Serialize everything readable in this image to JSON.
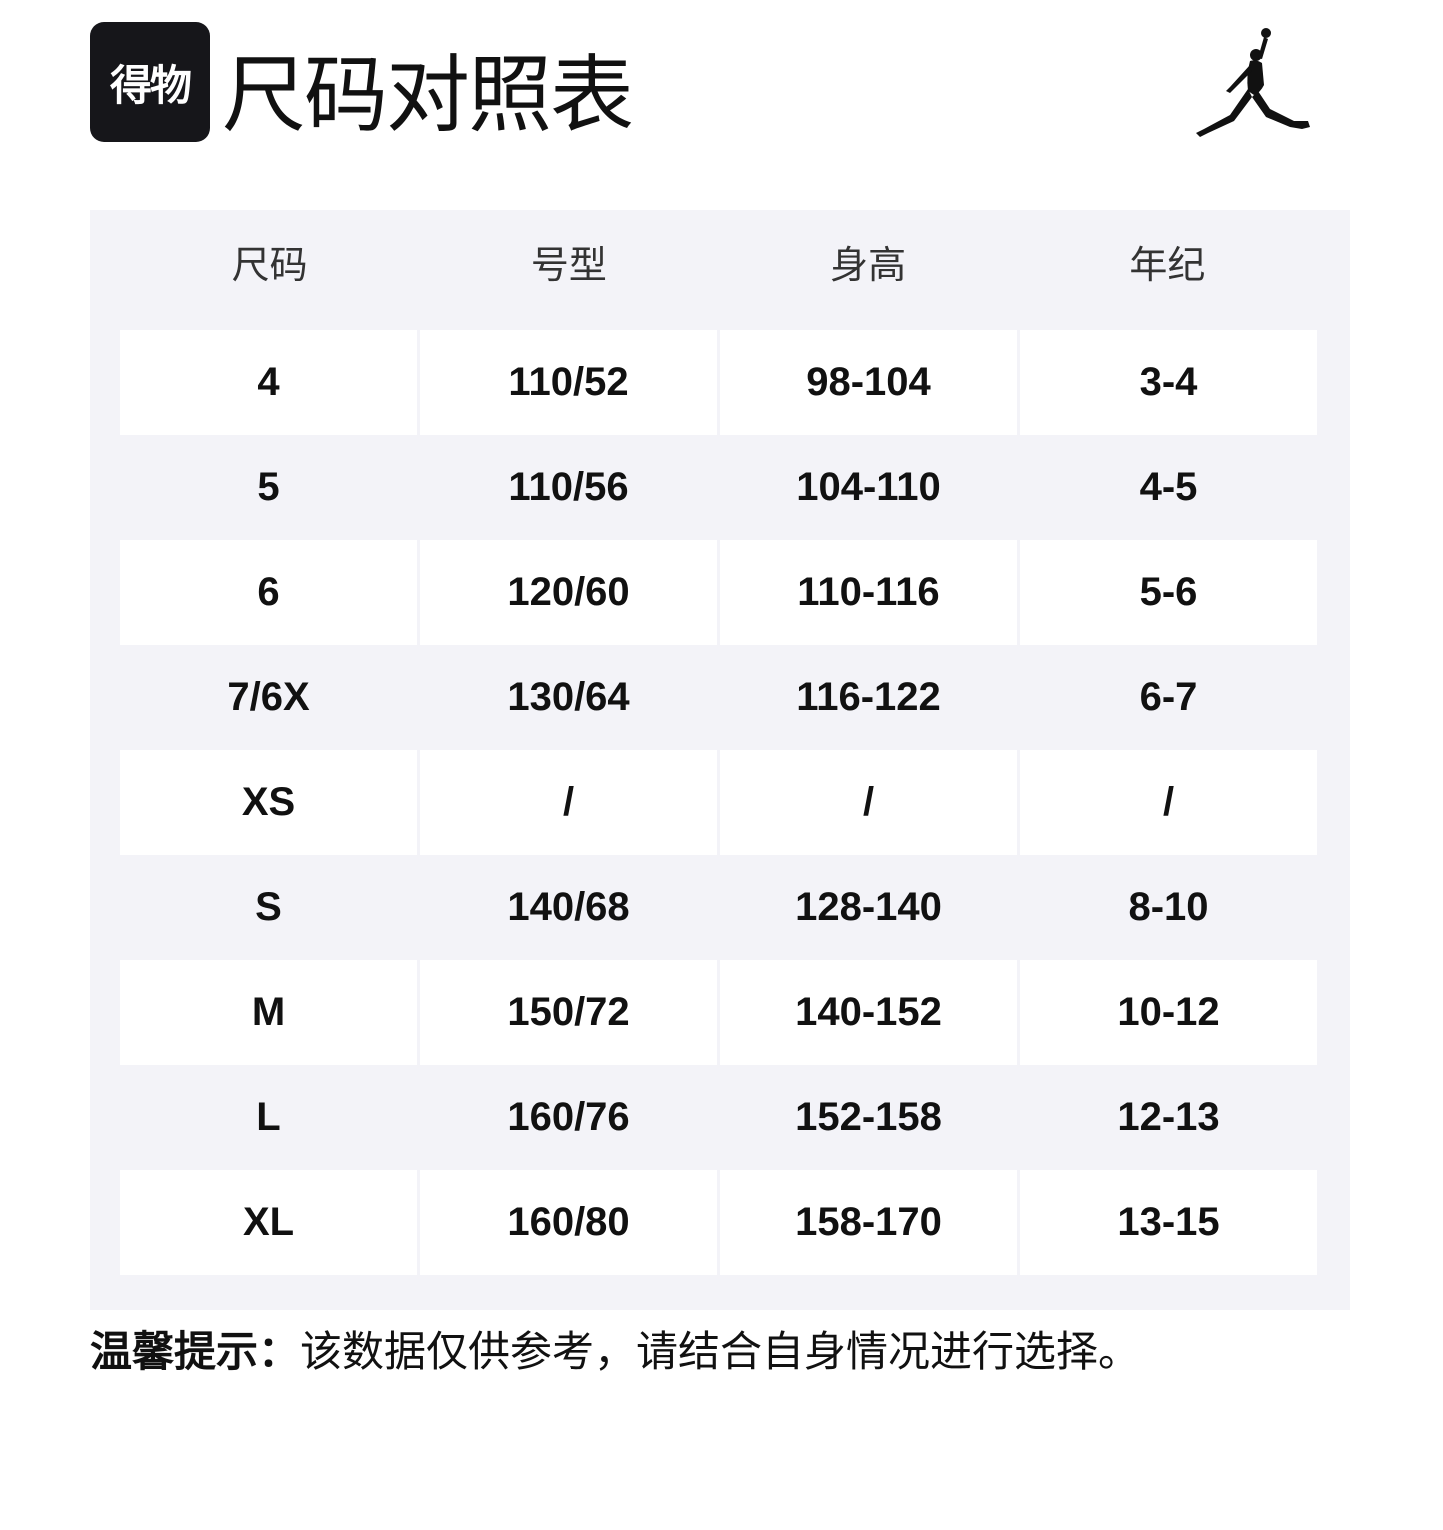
{
  "logo_text": "得物",
  "title": "尺码对照表",
  "brand_icon": "jumpman-logo",
  "colors": {
    "table_bg": "#f3f3f8",
    "cell_bg": "#ffffff",
    "logo_bg": "#16161a"
  },
  "table": {
    "headers": [
      "尺码",
      "号型",
      "身高",
      "年纪"
    ],
    "rows": [
      [
        "4",
        "110/52",
        "98-104",
        "3-4"
      ],
      [
        "5",
        "110/56",
        "104-110",
        "4-5"
      ],
      [
        "6",
        "120/60",
        "110-116",
        "5-6"
      ],
      [
        "7/6X",
        "130/64",
        "116-122",
        "6-7"
      ],
      [
        "XS",
        "/",
        "/",
        "/"
      ],
      [
        "S",
        "140/68",
        "128-140",
        "8-10"
      ],
      [
        "M",
        "150/72",
        "140-152",
        "10-12"
      ],
      [
        "L",
        "160/76",
        "152-158",
        "12-13"
      ],
      [
        "XL",
        "160/80",
        "158-170",
        "13-15"
      ]
    ]
  },
  "note": {
    "label": "温馨提示：",
    "text": "该数据仅供参考，请结合自身情况进行选择。"
  }
}
